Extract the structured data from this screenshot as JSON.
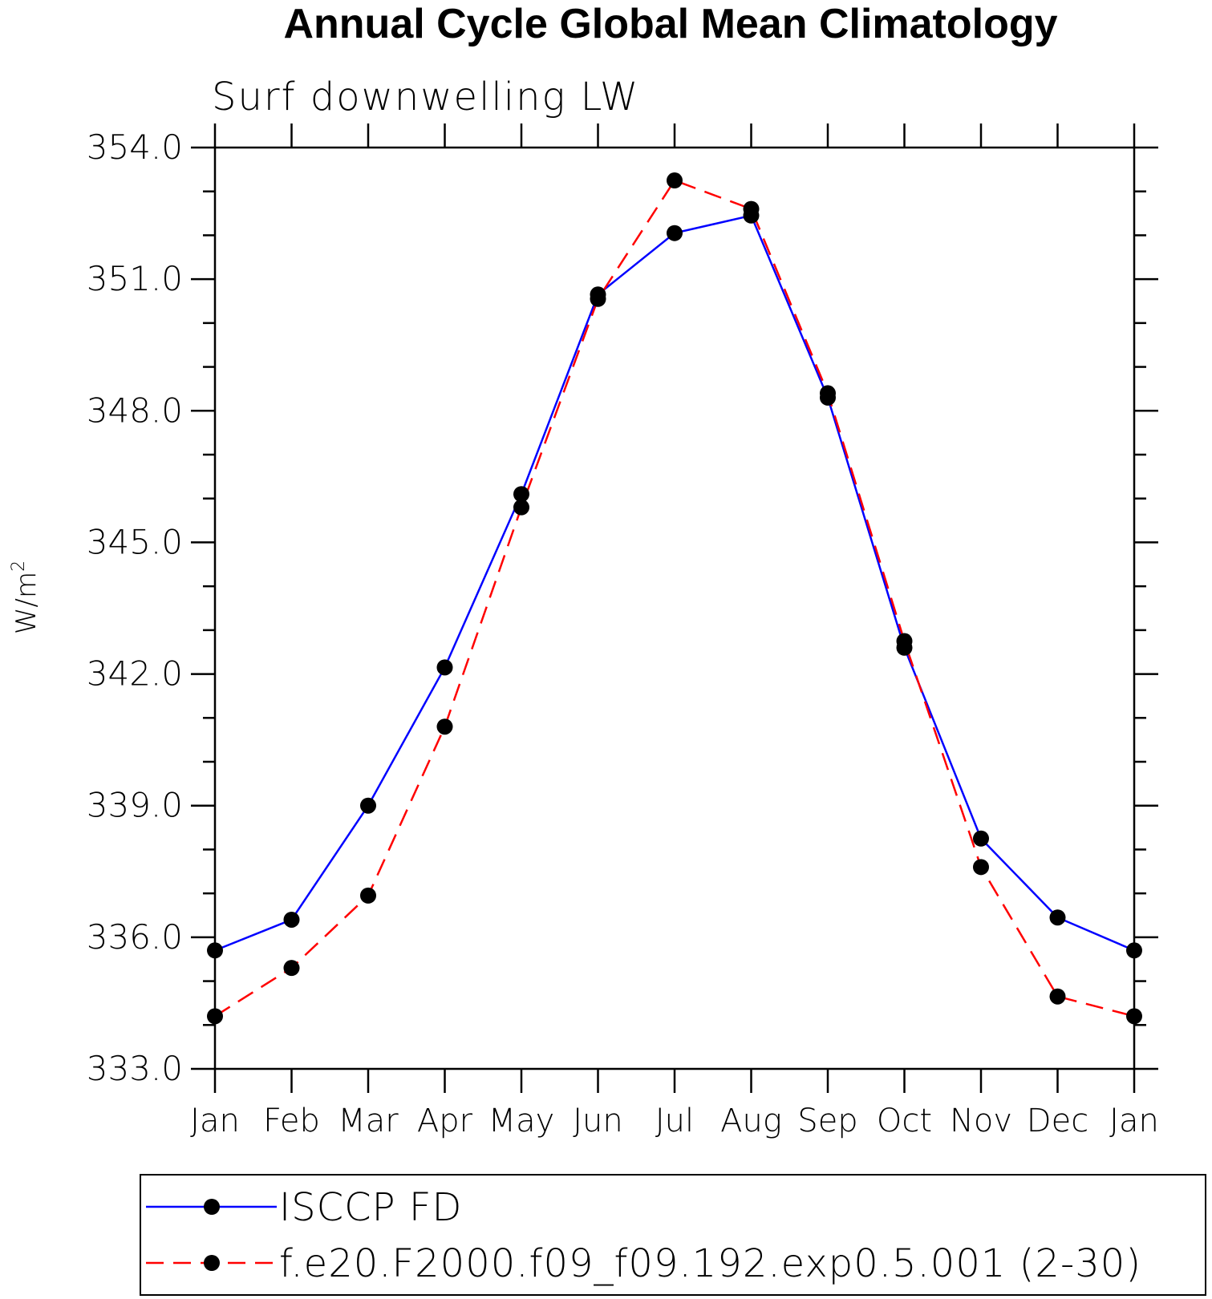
{
  "chart_data": {
    "type": "line",
    "title": "Annual Cycle Global Mean Climatology",
    "subtitle": "Surf downwelling LW",
    "ylabel": "W/m",
    "ylabel_superscript": "2",
    "xlabel": "",
    "categories": [
      "Jan",
      "Feb",
      "Mar",
      "Apr",
      "May",
      "Jun",
      "Jul",
      "Aug",
      "Sep",
      "Oct",
      "Nov",
      "Dec",
      "Jan"
    ],
    "ylim": [
      333.0,
      354.0
    ],
    "yticks": [
      "333.0",
      "336.0",
      "339.0",
      "342.0",
      "345.0",
      "348.0",
      "351.0",
      "354.0"
    ],
    "grid": false,
    "legend_position": "bottom",
    "series": [
      {
        "name": "ISCCP FD",
        "color": "#0000ff",
        "style": "solid",
        "marker": "filled-circle",
        "values": [
          335.7,
          336.4,
          339.0,
          342.15,
          346.1,
          350.65,
          352.05,
          352.45,
          348.3,
          342.6,
          338.25,
          336.45,
          335.7
        ]
      },
      {
        "name": "f.e20.F2000.f09_f09.192.exp0.5.001 (2-30)",
        "color": "#ff0000",
        "style": "dashed",
        "marker": "filled-circle",
        "values": [
          334.2,
          335.3,
          336.95,
          340.8,
          345.8,
          350.55,
          353.25,
          352.6,
          348.4,
          342.75,
          337.6,
          334.65,
          334.2
        ]
      }
    ]
  }
}
